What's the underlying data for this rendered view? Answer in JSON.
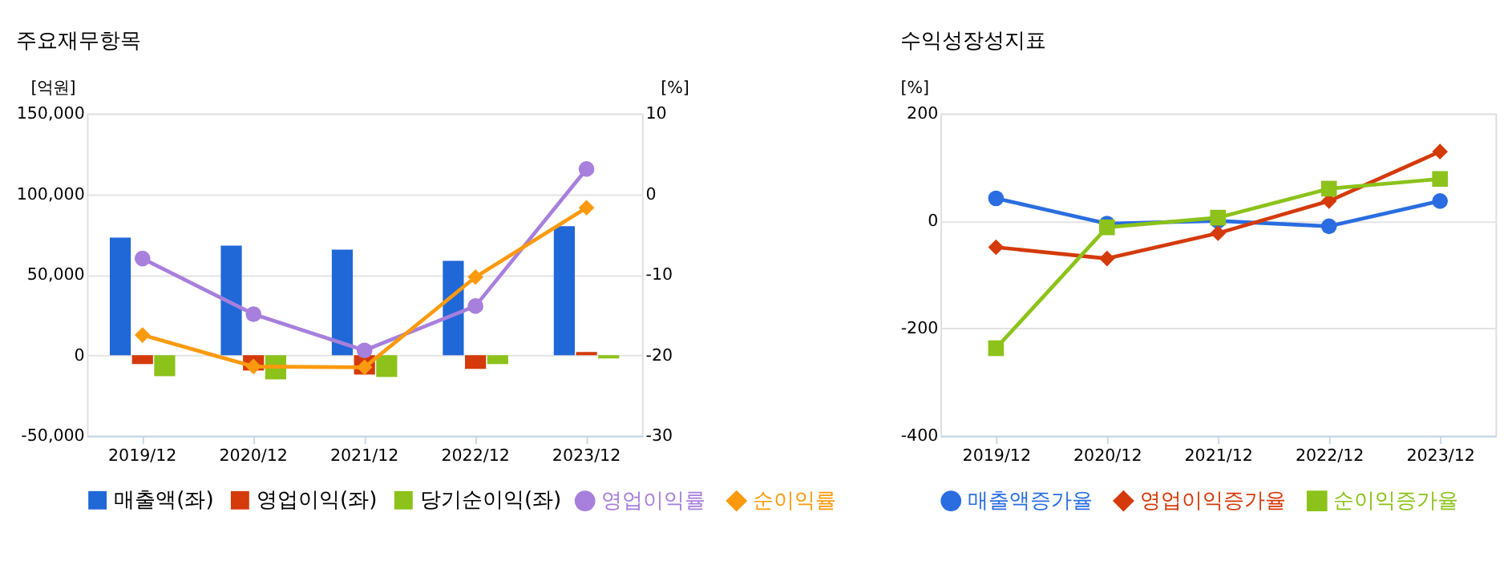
{
  "chart_data": [
    {
      "type": "bar",
      "title": "주요재무항목",
      "ylabel": "[억원]",
      "y2label": "[%]",
      "categories": [
        "2019/12",
        "2020/12",
        "2021/12",
        "2022/12",
        "2023/12"
      ],
      "series": [
        {
          "name": "매출액(좌)",
          "color": "#2067d8",
          "values": [
            73000,
            68000,
            65500,
            58500,
            80000
          ]
        },
        {
          "name": "영업이익(좌)",
          "color": "#d43a0a",
          "values": [
            -5500,
            -9500,
            -12000,
            -8500,
            2000
          ]
        },
        {
          "name": "당기순이익(좌)",
          "color": "#8cc21a",
          "values": [
            -13000,
            -15000,
            -13500,
            -5500,
            -2000
          ]
        },
        {
          "name": "영업이익률",
          "type": "line",
          "axis": "y2",
          "marker": "circle",
          "color": "#a77fdc",
          "values": [
            -8.0,
            -14.9,
            -19.4,
            -13.9,
            3.1
          ]
        },
        {
          "name": "순이익률",
          "type": "line",
          "axis": "y2",
          "marker": "diamond",
          "color": "#fb9a0e",
          "values": [
            -17.5,
            -21.4,
            -21.5,
            -10.3,
            -1.7
          ]
        }
      ],
      "ylim": [
        -50000,
        150000
      ],
      "yticks": [
        {
          "value": -50000,
          "label": "-50,000"
        },
        0,
        {
          "value": 50000,
          "label": "50,000"
        },
        {
          "value": 100000,
          "label": "100,000"
        },
        {
          "value": 150000,
          "label": "150,000"
        }
      ],
      "y2lim": [
        -30,
        10
      ],
      "y2ticks": [
        -30,
        -20,
        -10,
        0,
        10
      ],
      "grid": "y",
      "legend": "bottom"
    },
    {
      "type": "line",
      "title": "수익성장성지표",
      "ylabel": "[%]",
      "categories": [
        "2019/12",
        "2020/12",
        "2021/12",
        "2022/12",
        "2023/12"
      ],
      "series": [
        {
          "name": "매출액증가율",
          "marker": "circle",
          "color": "#2a6de0",
          "values": [
            42,
            -5,
            0,
            -10,
            37
          ]
        },
        {
          "name": "영업이익증가율",
          "marker": "diamond",
          "color": "#d43a0a",
          "values": [
            -49,
            -70,
            -23,
            37,
            129
          ]
        },
        {
          "name": "순이익증가율",
          "marker": "square",
          "color": "#8cc21a",
          "values": [
            -237,
            -12,
            6,
            60,
            78
          ]
        }
      ],
      "ylim": [
        -400,
        200
      ],
      "yticks": [
        -400,
        -200,
        0,
        200
      ],
      "grid": "y",
      "legend": "bottom"
    }
  ]
}
